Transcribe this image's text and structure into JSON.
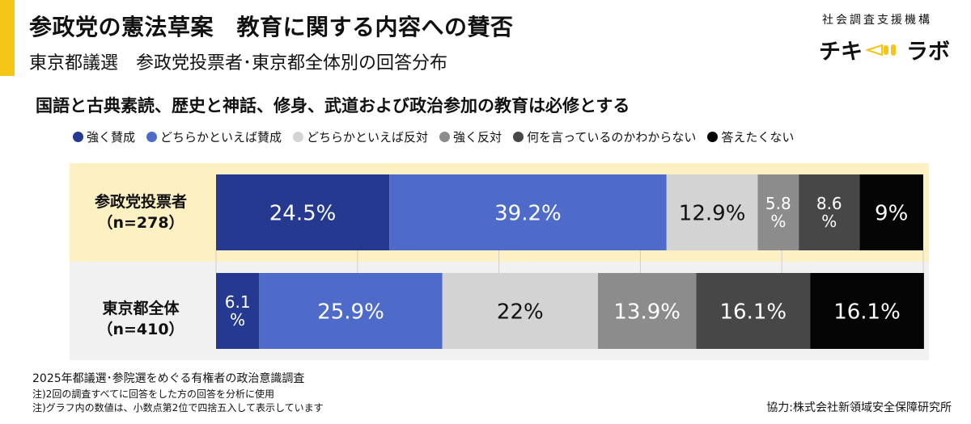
{
  "header": {
    "title": "参政党の憲法草案　教育に関する内容への賛否",
    "subtitle": "東京都議選　参政党投票者･東京都全体別の回答分布"
  },
  "logo": {
    "caption": "社会調査支援機構",
    "text_left": "チキ",
    "text_right": "ラボ"
  },
  "colors": {
    "accent": "#f5c518",
    "band_top": "#fdf1c4",
    "band_bottom": "#f1f1f1"
  },
  "chart_data": {
    "type": "bar",
    "orientation": "horizontal",
    "stacked": true,
    "percent_of_total": true,
    "title": "国語と古典素読、歴史と神話、修身、武道および政治参加の教育は必修とする",
    "categories": [
      {
        "name": "参政党投票者",
        "n": "（n=278）"
      },
      {
        "name": "東京都全体",
        "n": "（n=410）"
      }
    ],
    "series": [
      {
        "name": "強く賛成",
        "color": "#24398f",
        "text_color": "#ffffff",
        "values": [
          24.5,
          6.1
        ],
        "labels": [
          "24.5%",
          "6.1\n%"
        ]
      },
      {
        "name": "どちらかといえば賛成",
        "color": "#4f6bc9",
        "text_color": "#ffffff",
        "values": [
          39.2,
          25.9
        ],
        "labels": [
          "39.2%",
          "25.9%"
        ]
      },
      {
        "name": "どちらかといえば反対",
        "color": "#d3d3d3",
        "text_color": "#111111",
        "values": [
          12.9,
          22.0
        ],
        "labels": [
          "12.9%",
          "22%"
        ]
      },
      {
        "name": "強く反対",
        "color": "#8c8c8c",
        "text_color": "#ffffff",
        "values": [
          5.8,
          13.9
        ],
        "labels": [
          "5.8\n%",
          "13.9%"
        ]
      },
      {
        "name": "何を言っているのかわからない",
        "color": "#474747",
        "text_color": "#ffffff",
        "values": [
          8.6,
          16.1
        ],
        "labels": [
          "8.6\n%",
          "16.1%"
        ]
      },
      {
        "name": "答えたくない",
        "color": "#050505",
        "text_color": "#ffffff",
        "values": [
          9.0,
          16.1
        ],
        "labels": [
          "9%",
          "16.1%"
        ]
      }
    ],
    "xlim": [
      0,
      100
    ]
  },
  "footer": {
    "survey": "2025年都議選･参院選をめぐる有権者の政治意識調査",
    "note1": "注)2回の調査すべてに回答をした方の回答を分析に使用",
    "note2": "注)グラフ内の数値は、小数点第2位で四捨五入して表示しています",
    "credit": "協力:株式会社新領域安全保障研究所"
  }
}
